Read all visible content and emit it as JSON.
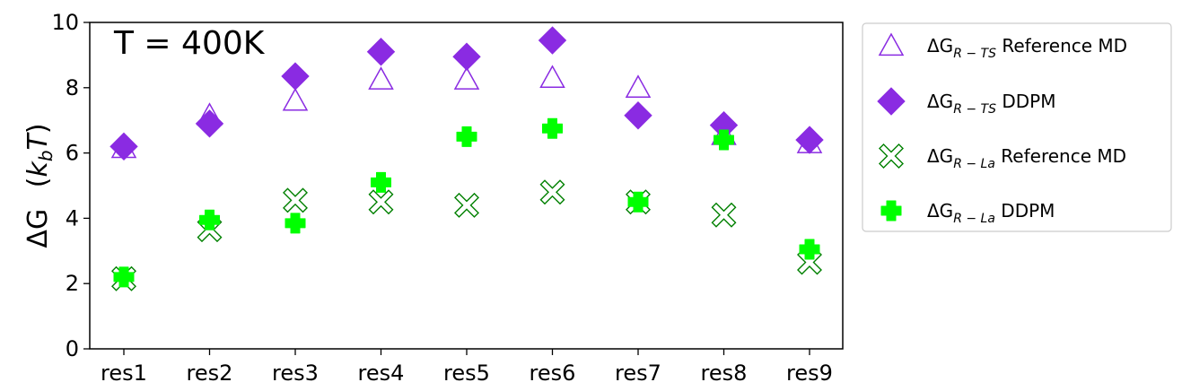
{
  "chart_data": {
    "type": "scatter",
    "title": "",
    "annotation": "T = 400K",
    "xlabel": "",
    "ylabel": "ΔG (k_b T)",
    "ylabel_parts": {
      "delta_g": "ΔG",
      "open": "(",
      "k": "k",
      "b": "b",
      "t": "T",
      "close": ")"
    },
    "categories": [
      "res1",
      "res2",
      "res3",
      "res4",
      "res5",
      "res6",
      "res7",
      "res8",
      "res9"
    ],
    "ylim": [
      0,
      10
    ],
    "yticks": [
      "0",
      "2",
      "4",
      "6",
      "8",
      "10"
    ],
    "grid": false,
    "legend_position": "outside-right",
    "series": [
      {
        "name": "ΔG_{R−TS} Reference MD",
        "legend_main": "ΔG",
        "legend_sub": "R − TS",
        "legend_rest": " Reference MD",
        "marker": "triangle-open",
        "color": "#8a2be2",
        "values": [
          6.15,
          7.15,
          7.6,
          8.25,
          8.25,
          8.3,
          8.0,
          6.55,
          6.3
        ]
      },
      {
        "name": "ΔG_{R−TS} DDPM",
        "legend_main": "ΔG",
        "legend_sub": "R − TS",
        "legend_rest": " DDPM",
        "marker": "diamond-filled",
        "color": "#8a2be2",
        "values": [
          6.2,
          6.9,
          8.35,
          9.1,
          8.95,
          9.45,
          7.15,
          6.85,
          6.4
        ]
      },
      {
        "name": "ΔG_{R−La} Reference MD",
        "legend_main": "ΔG",
        "legend_sub": "R − La",
        "legend_rest": " Reference MD",
        "marker": "x-open",
        "color": "#008000",
        "values": [
          2.15,
          3.65,
          4.55,
          4.5,
          4.4,
          4.8,
          4.5,
          4.1,
          2.65
        ]
      },
      {
        "name": "ΔG_{R−La} DDPM",
        "legend_main": "ΔG",
        "legend_sub": "R − La",
        "legend_rest": " DDPM",
        "marker": "plus-filled",
        "color": "#00ff00",
        "values": [
          2.2,
          3.95,
          3.85,
          5.1,
          6.5,
          6.75,
          4.5,
          6.4,
          3.05
        ]
      }
    ]
  }
}
